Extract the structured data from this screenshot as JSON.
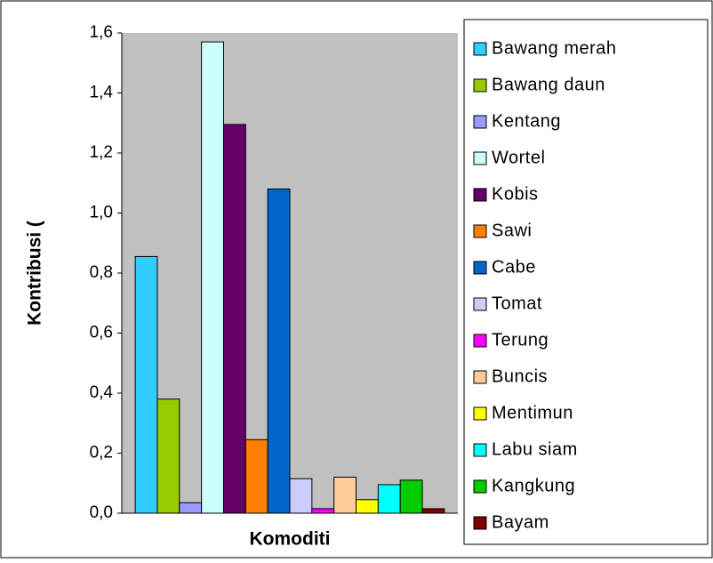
{
  "chart_data": {
    "type": "bar",
    "x_label": "Komoditi",
    "y_label": "Kontribusi (",
    "categories": [
      null
    ],
    "series": [
      {
        "name": "Bawang merah",
        "color": "#33ccff",
        "values": [
          0.855
        ]
      },
      {
        "name": "Bawang daun",
        "color": "#99cc00",
        "values": [
          0.38
        ]
      },
      {
        "name": "Kentang",
        "color": "#9999ff",
        "values": [
          0.035
        ]
      },
      {
        "name": "Wortel",
        "color": "#ccffff",
        "values": [
          1.57
        ]
      },
      {
        "name": "Kobis",
        "color": "#660066",
        "values": [
          1.295
        ]
      },
      {
        "name": "Sawi",
        "color": "#ff8000",
        "values": [
          0.245
        ]
      },
      {
        "name": "Cabe",
        "color": "#0066cc",
        "values": [
          1.08
        ]
      },
      {
        "name": "Tomat",
        "color": "#ccccff",
        "values": [
          0.115
        ]
      },
      {
        "name": "Terung",
        "color": "#ff00ff",
        "values": [
          0.015
        ]
      },
      {
        "name": "Buncis",
        "color": "#ffcc99",
        "values": [
          0.12
        ]
      },
      {
        "name": "Mentimun",
        "color": "#ffff00",
        "values": [
          0.045
        ]
      },
      {
        "name": "Labu siam",
        "color": "#00ffff",
        "values": [
          0.095
        ]
      },
      {
        "name": "Kangkung",
        "color": "#00cc00",
        "values": [
          0.11
        ]
      },
      {
        "name": "Bayam",
        "color": "#800000",
        "values": [
          0.015
        ]
      }
    ],
    "ylim": [
      0,
      1.6
    ],
    "yticks": [
      {
        "value": 0,
        "label": "0,0"
      },
      {
        "value": 0.2,
        "label": "0,2"
      },
      {
        "value": 0.4,
        "label": "0,4"
      },
      {
        "value": 0.6,
        "label": "0,6"
      },
      {
        "value": 0.8,
        "label": "0,8"
      },
      {
        "value": 1.0,
        "label": "1,0"
      },
      {
        "value": 1.2,
        "label": "1,2"
      },
      {
        "value": 1.4,
        "label": "1,4"
      },
      {
        "value": 1.6,
        "label": "1,6"
      }
    ],
    "grid": false,
    "plot_background": "#c0c0c0",
    "legend": "right"
  }
}
